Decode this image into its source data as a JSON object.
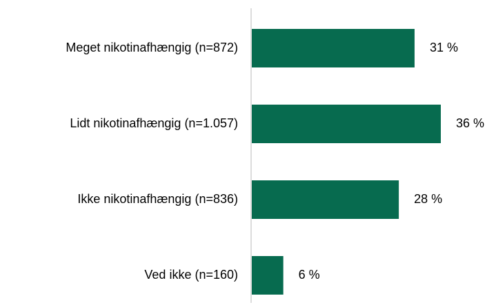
{
  "chart_data": {
    "type": "hbar",
    "categories": [
      "Meget nikotinafhængig (n=872)",
      "Lidt nikotinafhængig (n=1.057)",
      "Ikke nikotinafhængig (n=836)",
      "Ved ikke (n=160)"
    ],
    "values": [
      31,
      36,
      28,
      6
    ],
    "value_labels": [
      "31 %",
      "36 %",
      "28 %",
      "6 %"
    ],
    "color": "#076b4f"
  }
}
